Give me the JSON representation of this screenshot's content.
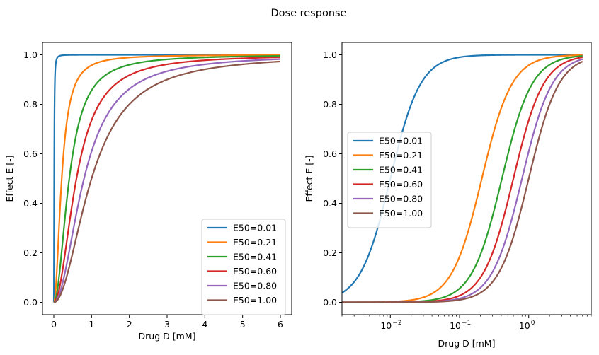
{
  "figure": {
    "title": "Dose response"
  },
  "colors": [
    "#1f77b4",
    "#ff7f0e",
    "#2ca02c",
    "#d62728",
    "#9467bd",
    "#8c564b"
  ],
  "chart_data": [
    {
      "type": "line",
      "xscale": "linear",
      "xlabel": "Drug D [mM]",
      "ylabel": "Effect E [-]",
      "xlim": [
        -0.3,
        6.3
      ],
      "ylim": [
        -0.05,
        1.05
      ],
      "xticks": [
        0,
        1,
        2,
        3,
        4,
        5,
        6
      ],
      "xtick_labels": [
        "0",
        "1",
        "2",
        "3",
        "4",
        "5",
        "6"
      ],
      "yticks": [
        0.0,
        0.2,
        0.4,
        0.6,
        0.8,
        1.0
      ],
      "ytick_labels": [
        "0.0",
        "0.2",
        "0.4",
        "0.6",
        "0.8",
        "1.0"
      ],
      "grid": false,
      "legend_position": "lower-right",
      "hill_coefficient": 2,
      "x_range": [
        0,
        6
      ],
      "series": [
        {
          "name": "E50=0.01",
          "e50": 0.01
        },
        {
          "name": "E50=0.21",
          "e50": 0.21
        },
        {
          "name": "E50=0.41",
          "e50": 0.41
        },
        {
          "name": "E50=0.60",
          "e50": 0.6
        },
        {
          "name": "E50=0.80",
          "e50": 0.8
        },
        {
          "name": "E50=1.00",
          "e50": 1.0
        }
      ]
    },
    {
      "type": "line",
      "xscale": "log",
      "xlabel": "Drug D [mM]",
      "ylabel": "Effect E [-]",
      "xlim": [
        0.002,
        8.0
      ],
      "ylim": [
        -0.05,
        1.05
      ],
      "xticks": [
        0.01,
        0.1,
        1
      ],
      "xtick_labels": [
        [
          "10",
          "−2"
        ],
        [
          "10",
          "−1"
        ],
        [
          "10",
          "0"
        ]
      ],
      "yticks": [
        0.0,
        0.2,
        0.4,
        0.6,
        0.8,
        1.0
      ],
      "ytick_labels": [
        "0.0",
        "0.2",
        "0.4",
        "0.6",
        "0.8",
        "1.0"
      ],
      "grid": false,
      "legend_position": "center-left",
      "hill_coefficient": 2,
      "x_range": [
        0.002,
        6
      ],
      "series": [
        {
          "name": "E50=0.01",
          "e50": 0.01
        },
        {
          "name": "E50=0.21",
          "e50": 0.21
        },
        {
          "name": "E50=0.41",
          "e50": 0.41
        },
        {
          "name": "E50=0.60",
          "e50": 0.6
        },
        {
          "name": "E50=0.80",
          "e50": 0.8
        },
        {
          "name": "E50=1.00",
          "e50": 1.0
        }
      ]
    }
  ]
}
